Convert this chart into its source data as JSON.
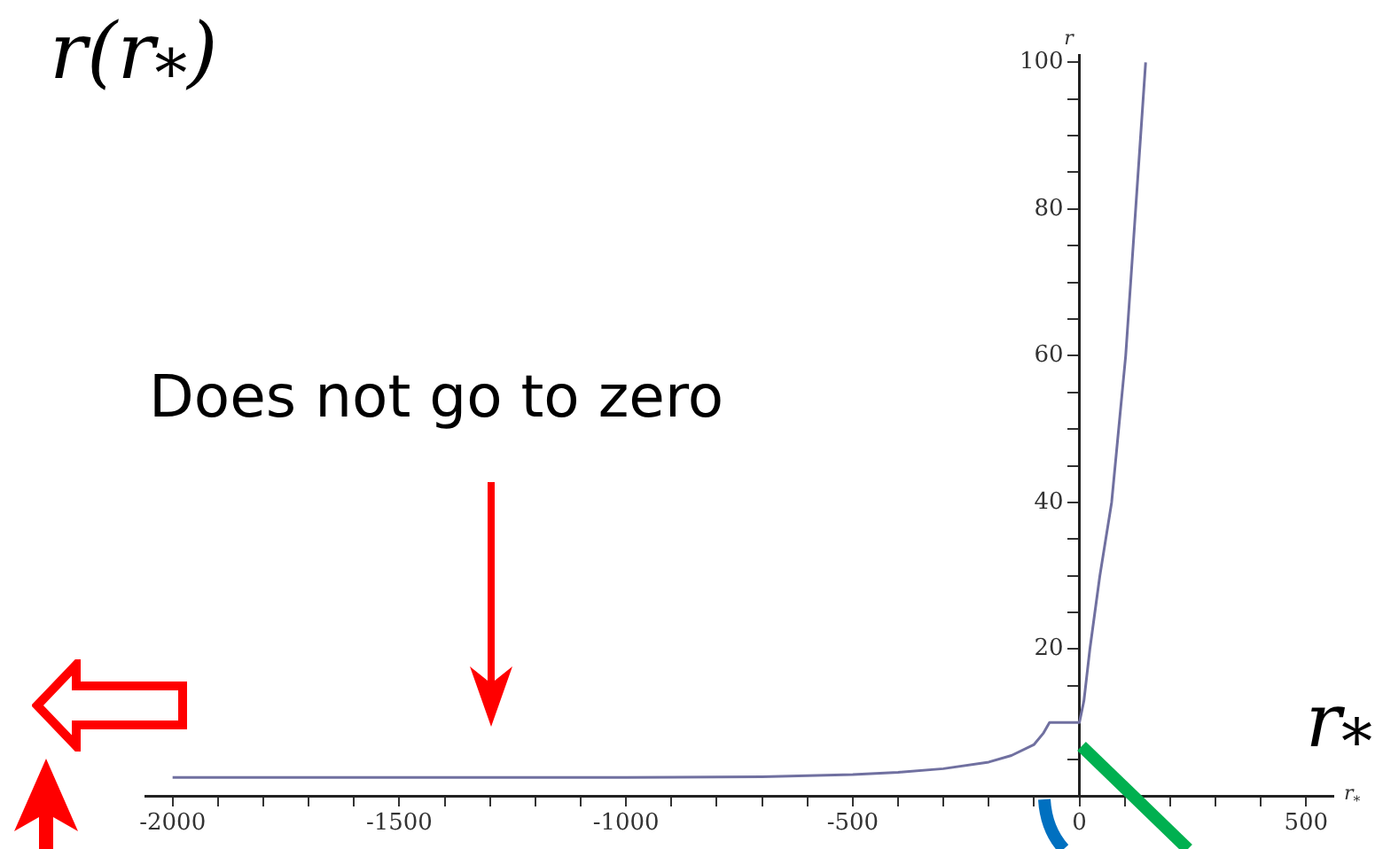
{
  "chart_data": {
    "type": "line",
    "title": "r(r$_{*}$)",
    "xlabel": "r$_{*}$",
    "ylabel": "r",
    "annotations": [
      "r$_{*}$",
      "Does not go to zero"
    ],
    "x": [
      -2000,
      -1500,
      -1000,
      -700,
      -500,
      -400,
      -300,
      -200,
      -150,
      -100,
      -80,
      -66,
      0,
      10,
      23,
      45,
      71,
      102,
      124,
      146
    ],
    "series": [
      {
        "color": "#7070a0",
        "values": [
          2.5,
          2.5,
          2.5,
          2.6,
          2.9,
          3.2,
          3.7,
          4.6,
          5.5,
          7,
          8.5,
          10,
          10,
          13,
          20,
          30,
          40,
          60,
          80,
          100
        ]
      }
    ],
    "xlim": [
      -2060,
      560
    ],
    "ylim": [
      0,
      101
    ],
    "xticks": [
      -2000,
      {
        "value": -1900,
        "label": null
      },
      {
        "value": -1800,
        "label": null
      },
      {
        "value": -1700,
        "label": null
      },
      {
        "value": -1600,
        "label": null
      },
      -1500,
      {
        "value": -1400,
        "label": null
      },
      {
        "value": -1300,
        "label": null
      },
      {
        "value": -1200,
        "label": null
      },
      {
        "value": -1100,
        "label": null
      },
      -1000,
      {
        "value": -900,
        "label": null
      },
      {
        "value": -800,
        "label": null
      },
      {
        "value": -700,
        "label": null
      },
      {
        "value": -600,
        "label": null
      },
      -500,
      {
        "value": -400,
        "label": null
      },
      {
        "value": -300,
        "label": null
      },
      {
        "value": -200,
        "label": null
      },
      {
        "value": -100,
        "label": null
      },
      0,
      {
        "value": 100,
        "label": null
      },
      {
        "value": 200,
        "label": null
      },
      {
        "value": 300,
        "label": null
      },
      {
        "value": 400,
        "label": null
      },
      500
    ],
    "yticks": [
      {
        "value": 5,
        "label": null
      },
      {
        "value": 10,
        "label": null
      },
      {
        "value": 15,
        "label": null
      },
      20,
      {
        "value": 25,
        "label": null
      },
      {
        "value": 30,
        "label": null
      },
      {
        "value": 35,
        "label": null
      },
      40,
      {
        "value": 45,
        "label": null
      },
      {
        "value": 50,
        "label": null
      },
      {
        "value": 55,
        "label": null
      },
      60,
      {
        "value": 65,
        "label": null
      },
      {
        "value": 70,
        "label": null
      },
      {
        "value": 75,
        "label": null
      },
      80,
      {
        "value": 85,
        "label": null
      },
      {
        "value": 90,
        "label": null
      },
      {
        "value": 95,
        "label": null
      },
      100
    ],
    "marker": "none",
    "line_style": "solid"
  }
}
